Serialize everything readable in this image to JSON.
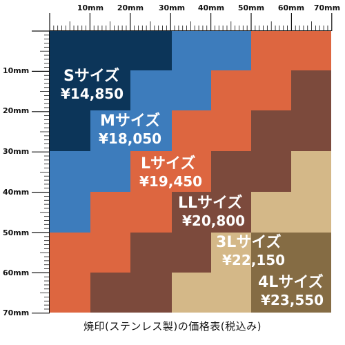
{
  "caption": "焼印(ステンレス製)の価格表(税込み)",
  "ruler": {
    "unit": "mm",
    "top_labels": [
      "10mm",
      "20mm",
      "30mm",
      "40mm",
      "50mm",
      "60mm",
      "70mm"
    ],
    "left_labels": [
      "10mm",
      "20mm",
      "30mm",
      "40mm",
      "50mm",
      "60mm",
      "70mm"
    ]
  },
  "sizes": [
    {
      "id": "s",
      "name": "Sサイズ",
      "price": "¥14,850",
      "max_mm": 30,
      "color": "#0c3559"
    },
    {
      "id": "m",
      "name": "Mサイズ",
      "price": "¥18,050",
      "max_mm": 40,
      "color": "#3d7cbc"
    },
    {
      "id": "l",
      "name": "Lサイズ",
      "price": "¥19,450",
      "max_mm": 50,
      "color": "#dd6640"
    },
    {
      "id": "ll",
      "name": "LLサイズ",
      "price": "¥20,800",
      "max_mm": 60,
      "color": "#7c4a3c"
    },
    {
      "id": "3l",
      "name": "3Lサイズ",
      "price": "¥22,150",
      "max_mm": 70,
      "color": "#d4b888"
    },
    {
      "id": "4l",
      "name": "4Lサイズ",
      "price": "¥23,550",
      "max_mm": 70,
      "color": "#856c44"
    }
  ]
}
